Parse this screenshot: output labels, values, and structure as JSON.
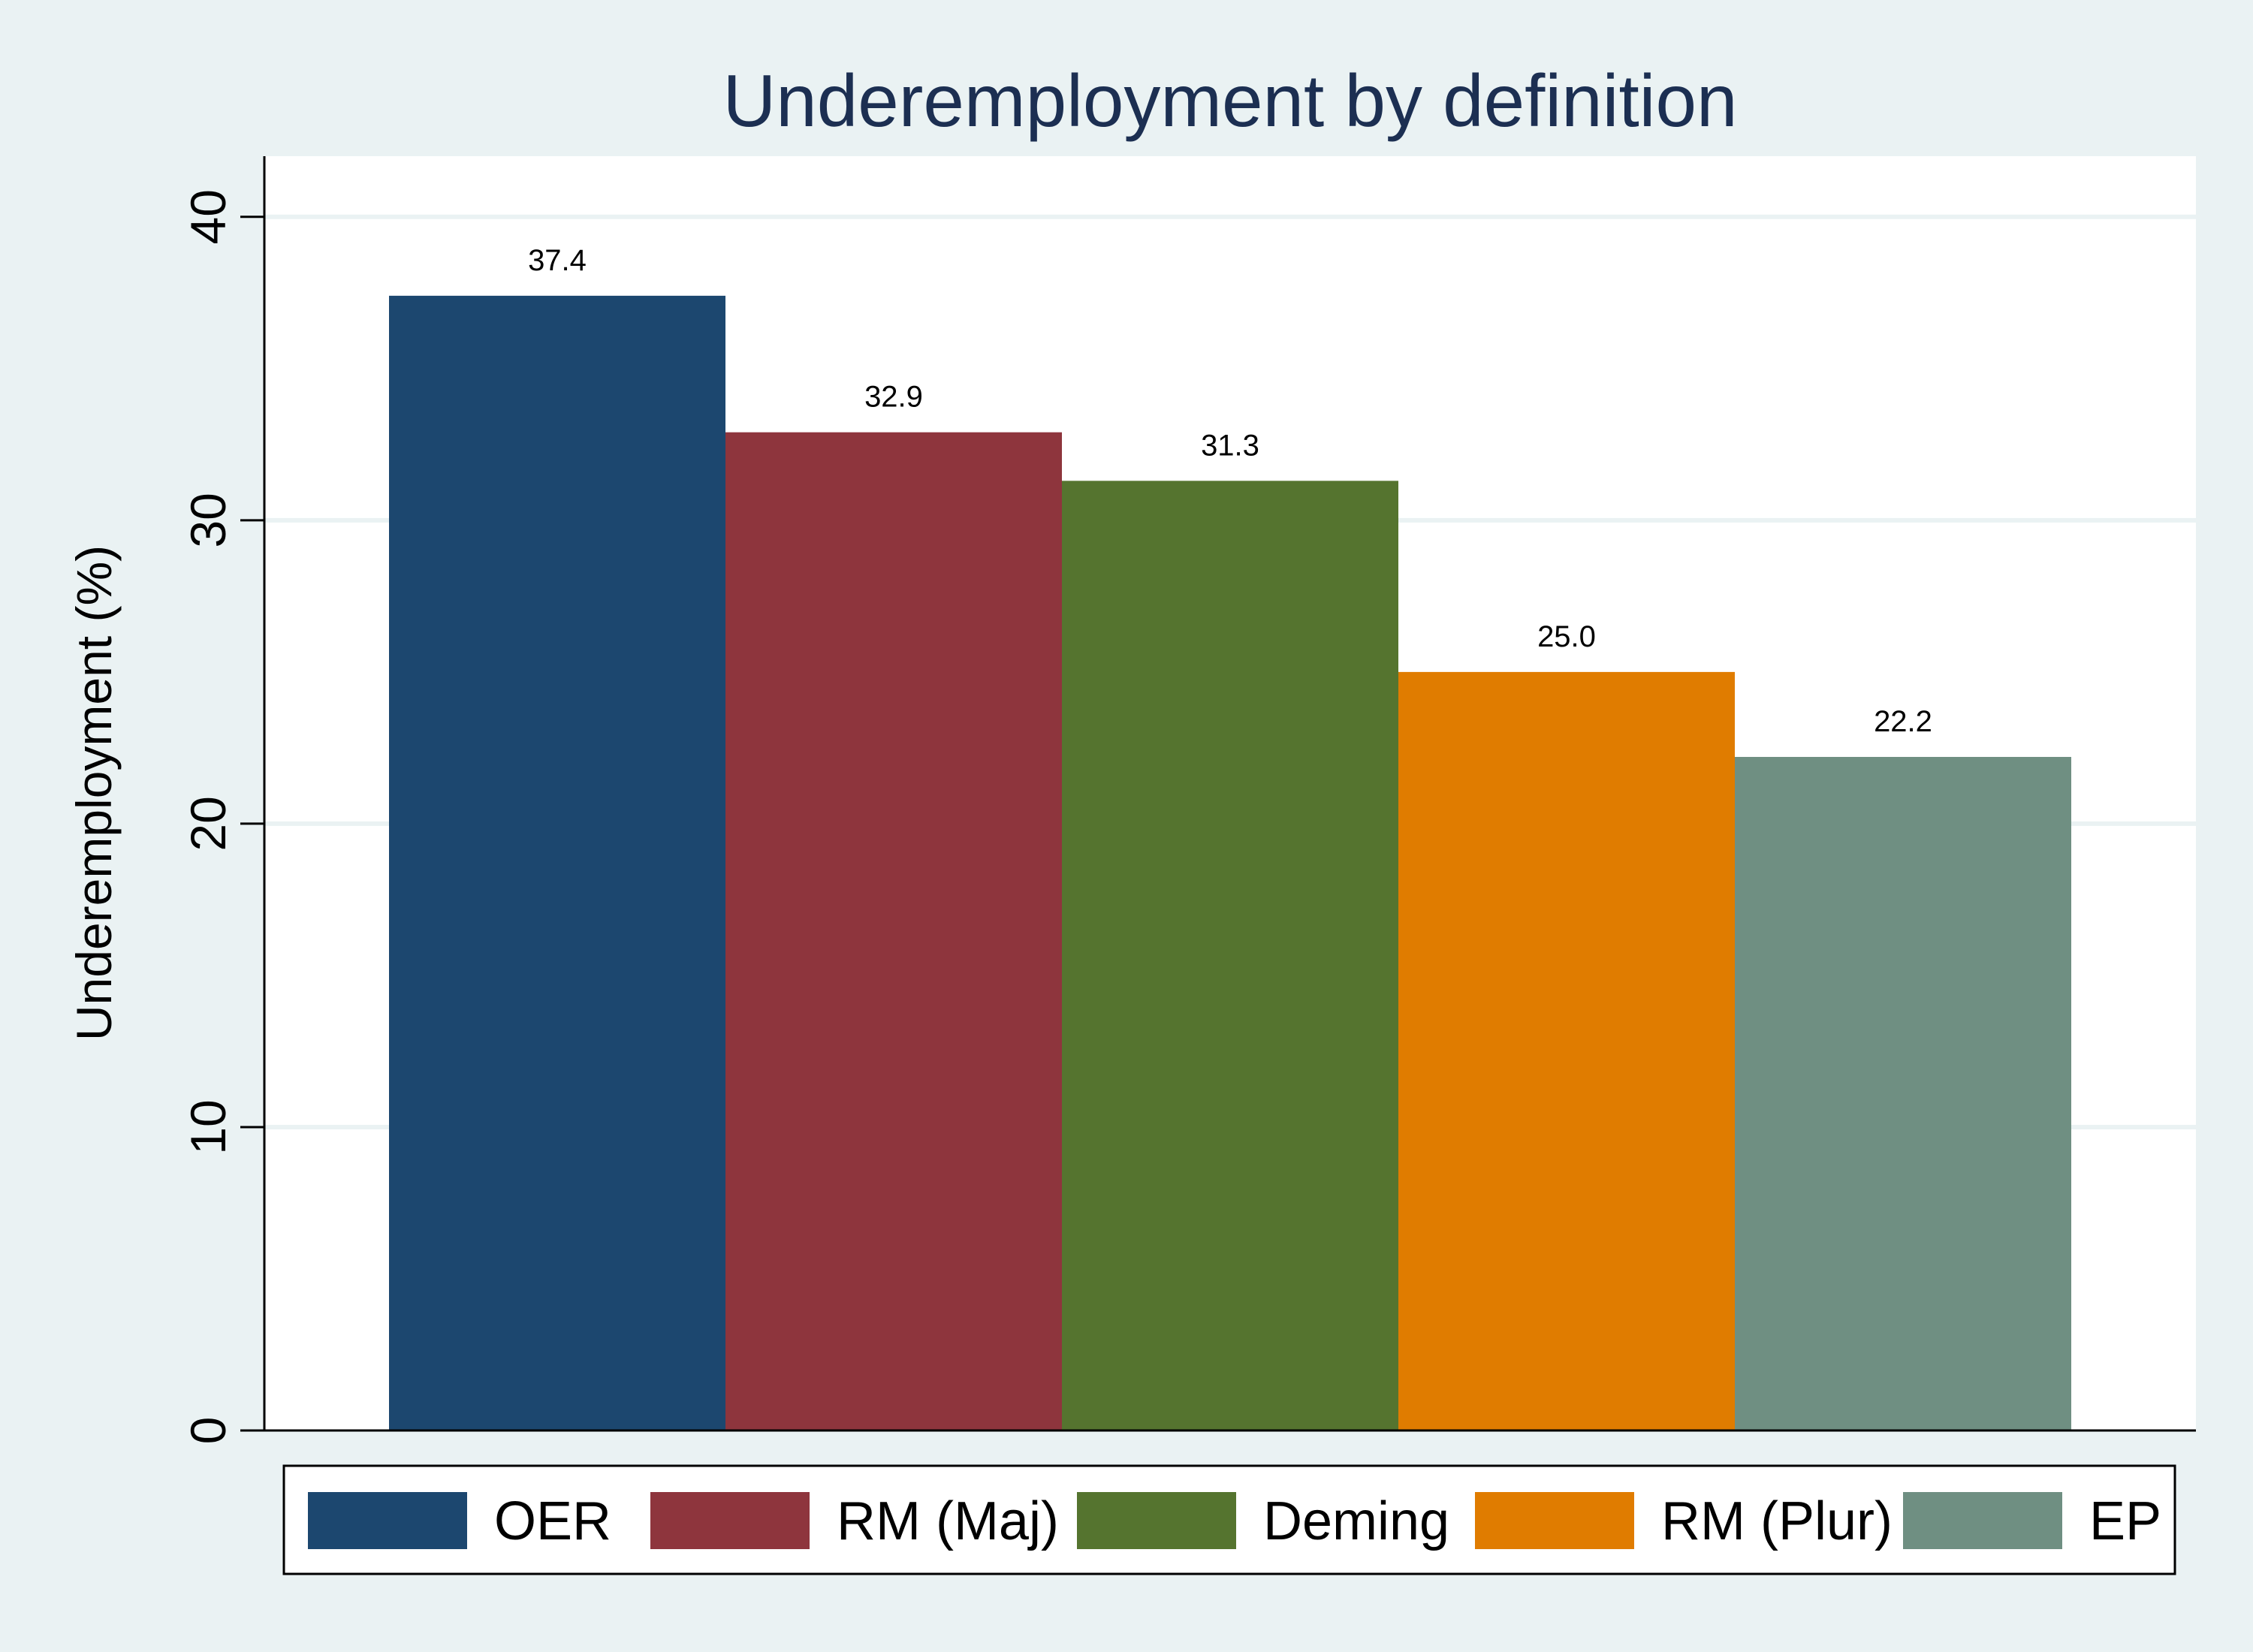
{
  "chart_data": {
    "type": "bar",
    "title": "Underemployment by definition",
    "xlabel": "",
    "ylabel": "Underemployment (%)",
    "ylim": [
      0,
      42
    ],
    "yticks": [
      0,
      10,
      20,
      30,
      40
    ],
    "grid": true,
    "legend_position": "bottom",
    "series": [
      {
        "name": "OER",
        "value": 37.4,
        "label": "37.4",
        "color": "#1c476f"
      },
      {
        "name": "RM (Maj)",
        "value": 32.9,
        "label": "32.9",
        "color": "#8e353d"
      },
      {
        "name": "Deming",
        "value": 31.3,
        "label": "31.3",
        "color": "#55742f"
      },
      {
        "name": "RM (Plur)",
        "value": 25.0,
        "label": "25.0",
        "color": "#e07c00"
      },
      {
        "name": "EP",
        "value": 22.2,
        "label": "22.2",
        "color": "#6f8f82"
      }
    ],
    "colors": {
      "background": "#eaf2f3",
      "plot_background": "#ffffff",
      "gridline": "#eaf2f3",
      "title": "#1c2f52",
      "text": "#000000"
    }
  }
}
